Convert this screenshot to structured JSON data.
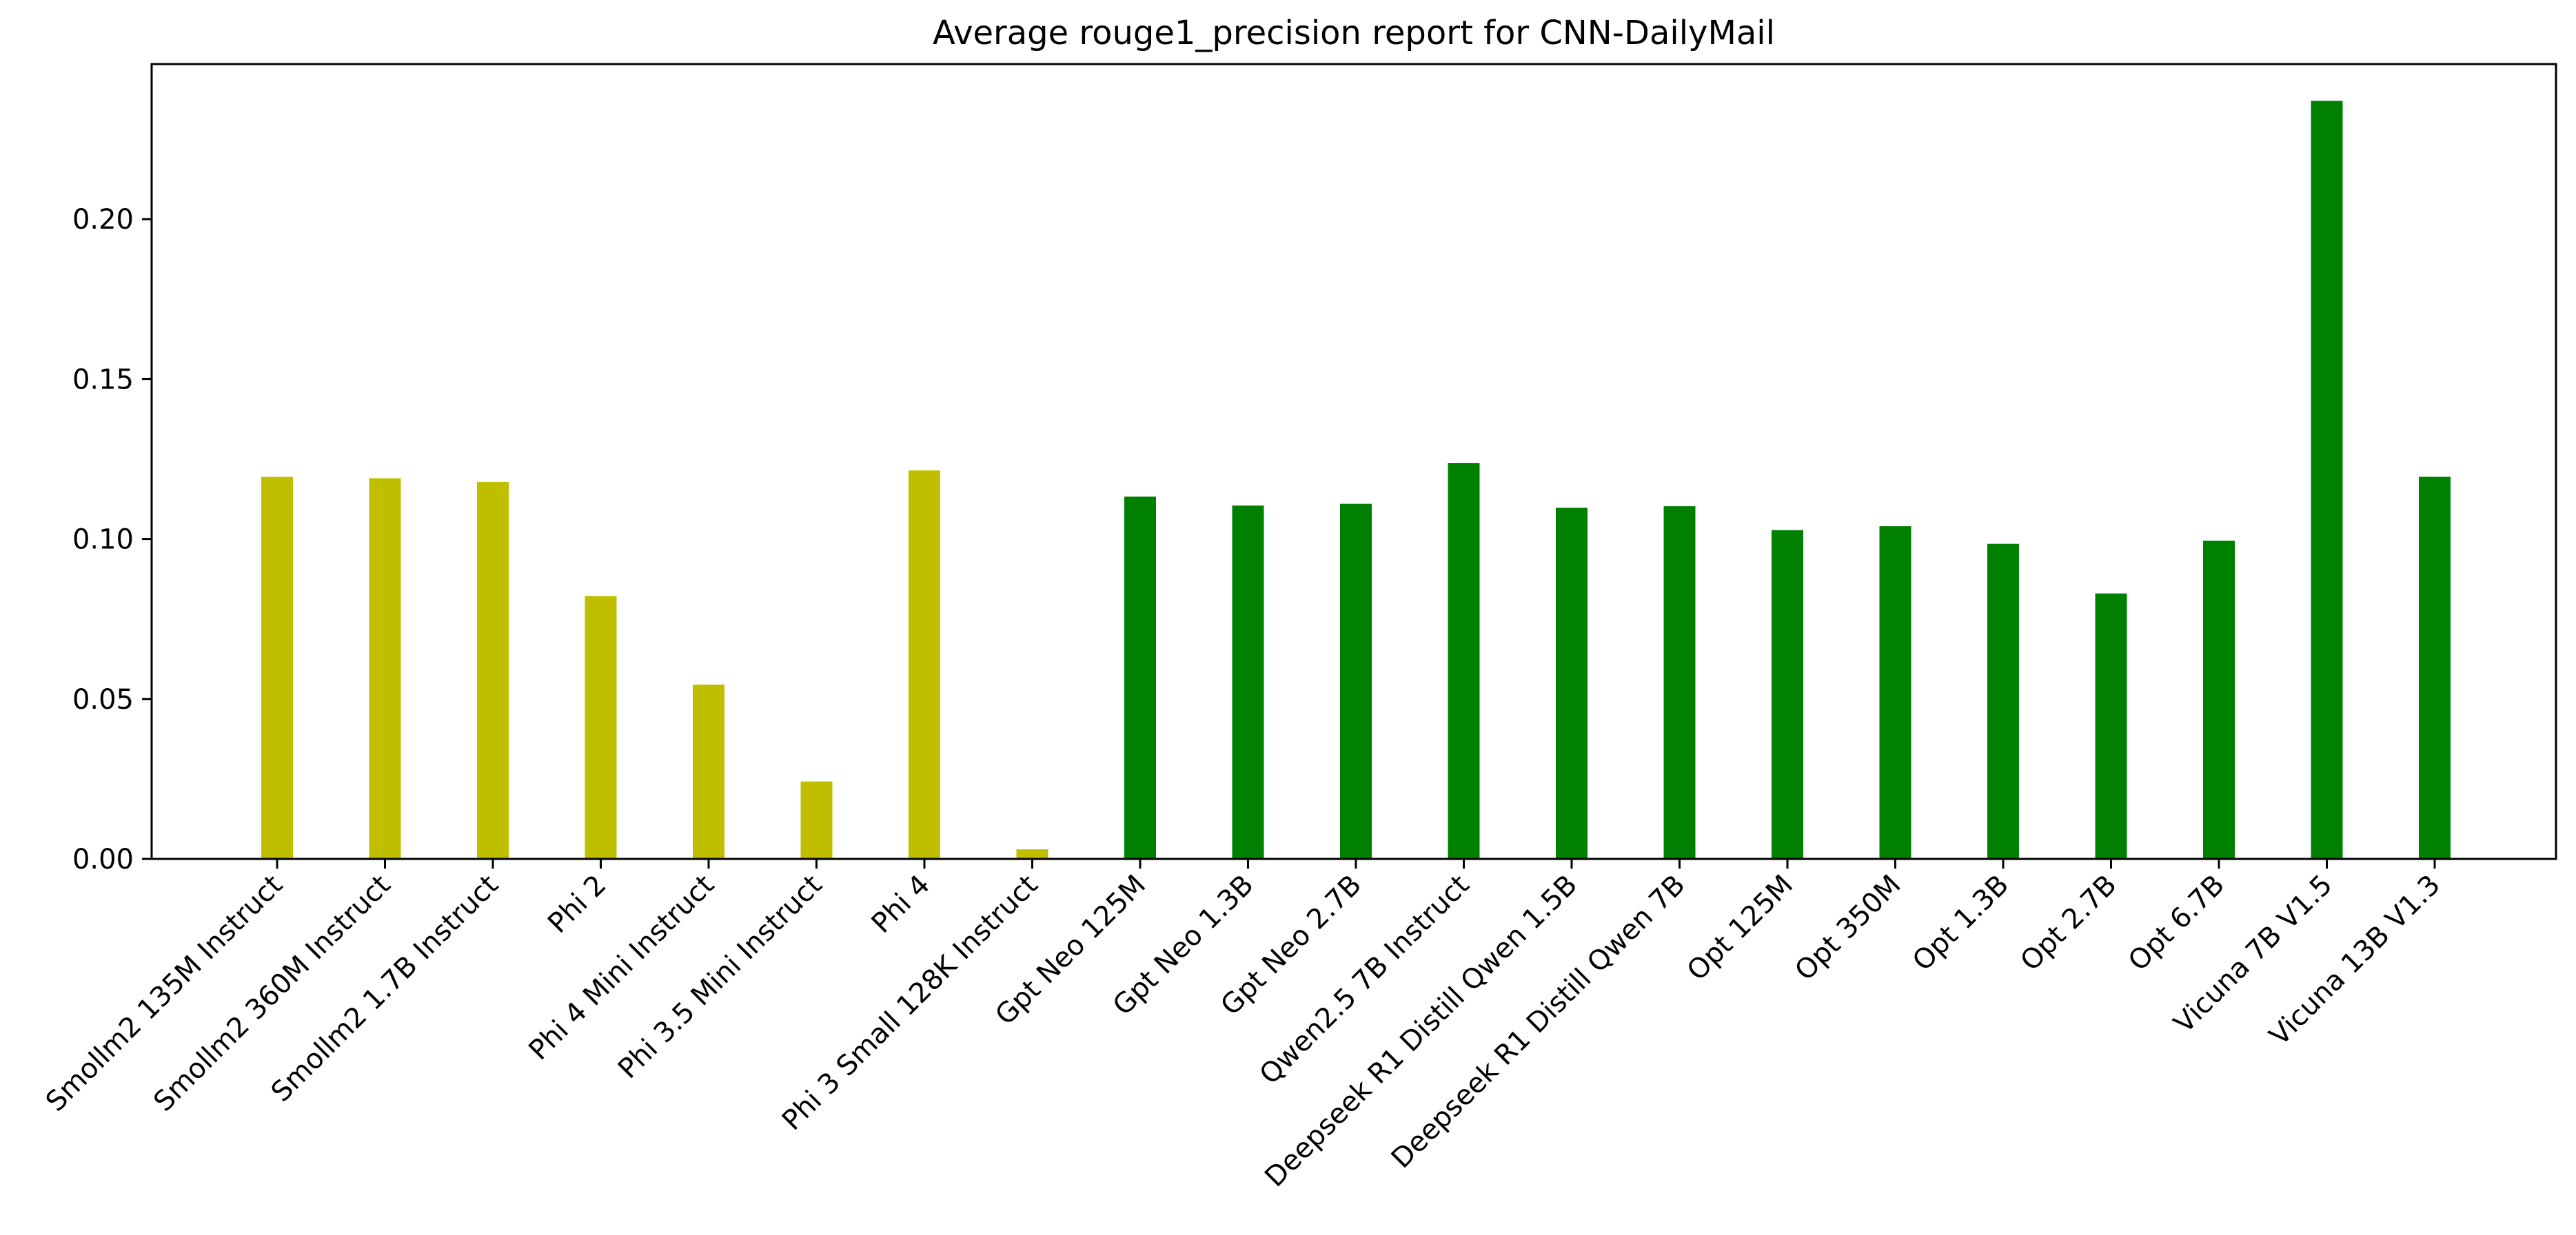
{
  "chart_data": {
    "type": "bar",
    "title": "Average rouge1_precision report for CNN-DailyMail",
    "xlabel": "",
    "ylabel": "",
    "ylim": [
      0,
      0.2485
    ],
    "yticks": [
      "0.00",
      "0.05",
      "0.10",
      "0.15",
      "0.20"
    ],
    "grid": false,
    "categories": [
      "Smollm2 135M Instruct",
      "Smollm2 360M Instruct",
      "Smollm2 1.7B Instruct",
      "Phi 2",
      "Phi 4 Mini Instruct",
      "Phi 3.5 Mini Instruct",
      "Phi 4",
      "Phi 3 Small 128K Instruct",
      "Gpt Neo 125M",
      "Gpt Neo 1.3B",
      "Gpt Neo 2.7B",
      "Qwen2.5 7B Instruct",
      "Deepseek R1 Distill Qwen 1.5B",
      "Deepseek R1 Distill Qwen 7B",
      "Opt 125M",
      "Opt 350M",
      "Opt 1.3B",
      "Opt 2.7B",
      "Opt 6.7B",
      "Vicuna 7B V1.5",
      "Vicuna 13B V1.3"
    ],
    "values": [
      0.1195,
      0.119,
      0.1178,
      0.0822,
      0.0545,
      0.0242,
      0.1215,
      0.003,
      0.1133,
      0.1105,
      0.111,
      0.1238,
      0.1098,
      0.1103,
      0.1028,
      0.104,
      0.0985,
      0.083,
      0.0995,
      0.237,
      0.1195
    ],
    "colors": [
      "#bfbf00",
      "#bfbf00",
      "#bfbf00",
      "#bfbf00",
      "#bfbf00",
      "#bfbf00",
      "#bfbf00",
      "#bfbf00",
      "#008000",
      "#008000",
      "#008000",
      "#008000",
      "#008000",
      "#008000",
      "#008000",
      "#008000",
      "#008000",
      "#008000",
      "#008000",
      "#008000",
      "#008000"
    ]
  }
}
